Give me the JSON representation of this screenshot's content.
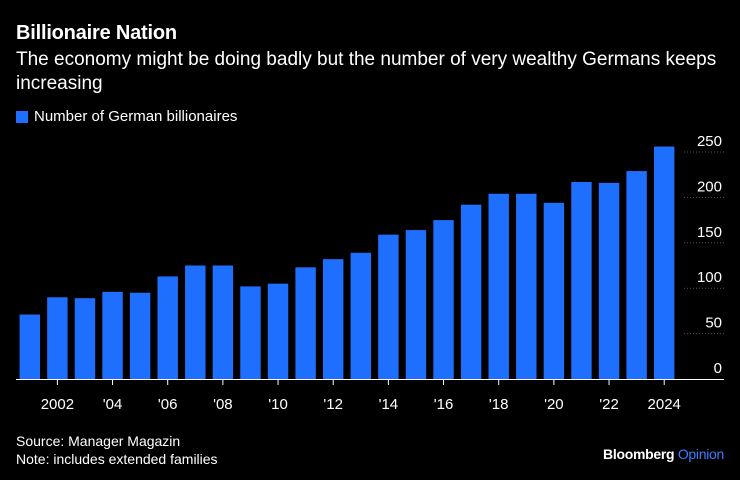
{
  "header": {
    "title": "Billionaire Nation",
    "subtitle": "The economy might be doing badly but the number of very wealthy Germans keeps increasing"
  },
  "footer": {
    "source": "Source: Manager Magazin",
    "note": "Note: includes extended families"
  },
  "brand": {
    "name": "Bloomberg",
    "suffix": "Opinion"
  },
  "colors": {
    "bar": "#1f6fff",
    "background": "#000000",
    "text": "#ffffff",
    "brand_accent": "#3b7cff"
  },
  "chart_data": {
    "type": "bar",
    "series": [
      {
        "name": "Number of German billionaires",
        "values": [
          71,
          90,
          89,
          96,
          95,
          113,
          125,
          125,
          102,
          105,
          123,
          132,
          139,
          159,
          164,
          175,
          192,
          204,
          204,
          194,
          217,
          216,
          229,
          256
        ]
      }
    ],
    "categories": [
      "2001",
      "2002",
      "2003",
      "2004",
      "2005",
      "2006",
      "2007",
      "2008",
      "2009",
      "2010",
      "2011",
      "2012",
      "2013",
      "2014",
      "2015",
      "2016",
      "2017",
      "2018",
      "2019",
      "2020",
      "2021",
      "2022",
      "2023",
      "2024"
    ],
    "x_tick_labels": [
      {
        "index": 1,
        "label": "2002"
      },
      {
        "index": 3,
        "label": "'04"
      },
      {
        "index": 5,
        "label": "'06"
      },
      {
        "index": 7,
        "label": "'08"
      },
      {
        "index": 9,
        "label": "'10"
      },
      {
        "index": 11,
        "label": "'12"
      },
      {
        "index": 13,
        "label": "'14"
      },
      {
        "index": 15,
        "label": "'16"
      },
      {
        "index": 17,
        "label": "'18"
      },
      {
        "index": 19,
        "label": "'20"
      },
      {
        "index": 21,
        "label": "'22"
      },
      {
        "index": 23,
        "label": "2024"
      }
    ],
    "y_ticks": [
      0,
      50,
      100,
      150,
      200,
      250
    ],
    "ylim": [
      0,
      250
    ],
    "y_axis_side": "right",
    "grid": true
  }
}
